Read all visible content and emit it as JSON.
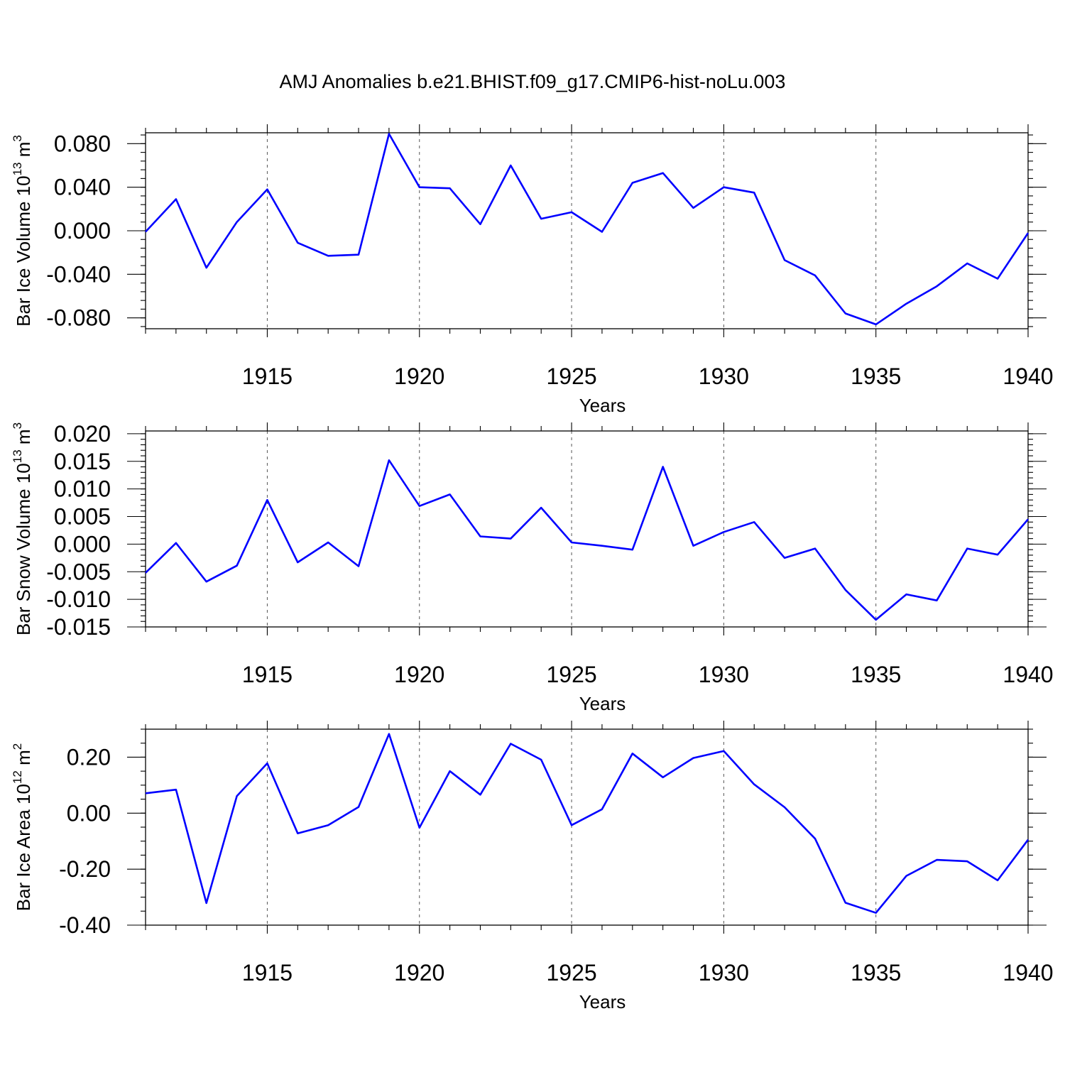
{
  "title": "AMJ Anomalies b.e21.BHIST.f09_g17.CMIP6-hist-noLu.003",
  "line_color": "#0000ff",
  "chart_data": [
    {
      "type": "line",
      "ylabel": "Bar Ice Volume 10",
      "ylabel_exp": "13",
      "ylabel_unit": " m",
      "ylabel_unit_exp": "3",
      "xlabel": "Years",
      "xlim": [
        1911,
        1940
      ],
      "ylim": [
        -0.09,
        0.09
      ],
      "x_ticks": [
        1915,
        1920,
        1925,
        1930,
        1935,
        1940
      ],
      "y_ticks": [
        -0.08,
        -0.04,
        0.0,
        0.04,
        0.08
      ],
      "y_tick_labels": [
        "-0.080",
        "-0.040",
        "0.000",
        "0.040",
        "0.080"
      ],
      "y_minor_step": 0.008,
      "grid": "x-dashed",
      "x": [
        1911,
        1912,
        1913,
        1914,
        1915,
        1916,
        1917,
        1918,
        1919,
        1920,
        1921,
        1922,
        1923,
        1924,
        1925,
        1926,
        1927,
        1928,
        1929,
        1930,
        1931,
        1932,
        1933,
        1934,
        1935,
        1936,
        1937,
        1938,
        1939,
        1940
      ],
      "series": [
        {
          "values": [
            -0.001,
            0.029,
            -0.034,
            0.008,
            0.038,
            -0.011,
            -0.023,
            -0.022,
            0.089,
            0.04,
            0.039,
            0.006,
            0.06,
            0.011,
            0.017,
            -0.001,
            0.044,
            0.053,
            0.021,
            0.04,
            0.035,
            -0.027,
            -0.041,
            -0.076,
            -0.086,
            -0.067,
            -0.051,
            -0.03,
            -0.044,
            -0.002
          ]
        }
      ]
    },
    {
      "type": "line",
      "ylabel": "Bar Snow Volume 10",
      "ylabel_exp": "13",
      "ylabel_unit": " m",
      "ylabel_unit_exp": "3",
      "xlabel": "Years",
      "xlim": [
        1911,
        1940
      ],
      "ylim": [
        -0.015,
        0.0205
      ],
      "x_ticks": [
        1915,
        1920,
        1925,
        1930,
        1935,
        1940
      ],
      "y_ticks": [
        -0.015,
        -0.01,
        -0.005,
        0.0,
        0.005,
        0.01,
        0.015,
        0.02
      ],
      "y_tick_labels": [
        "-0.015",
        "-0.010",
        "-0.005",
        "0.000",
        "0.005",
        "0.010",
        "0.015",
        "0.020"
      ],
      "y_minor_step": 0.001,
      "grid": "x-dashed",
      "x": [
        1911,
        1912,
        1913,
        1914,
        1915,
        1916,
        1917,
        1918,
        1919,
        1920,
        1921,
        1922,
        1923,
        1924,
        1925,
        1926,
        1927,
        1928,
        1929,
        1930,
        1931,
        1932,
        1933,
        1934,
        1935,
        1936,
        1937,
        1938,
        1939,
        1940
      ],
      "series": [
        {
          "values": [
            -0.0052,
            0.0002,
            -0.0068,
            -0.0039,
            0.008,
            -0.0033,
            0.0003,
            -0.004,
            0.0152,
            0.0069,
            0.009,
            0.0014,
            0.001,
            0.0066,
            0.0003,
            -0.0003,
            -0.001,
            0.014,
            -0.0003,
            0.0022,
            0.004,
            -0.0025,
            -0.0008,
            -0.0083,
            -0.0137,
            -0.0091,
            -0.0102,
            -0.0008,
            -0.0019,
            0.0045
          ]
        }
      ]
    },
    {
      "type": "line",
      "ylabel": "Bar Ice Area 10",
      "ylabel_exp": "12",
      "ylabel_unit": " m",
      "ylabel_unit_exp": "2",
      "xlabel": "Years",
      "xlim": [
        1911,
        1940
      ],
      "ylim": [
        -0.4,
        0.3
      ],
      "x_ticks": [
        1915,
        1920,
        1925,
        1930,
        1935,
        1940
      ],
      "y_ticks": [
        -0.4,
        -0.2,
        0.0,
        0.2
      ],
      "y_tick_labels": [
        "-0.40",
        "-0.20",
        "0.00",
        "0.20"
      ],
      "y_minor_step": 0.05,
      "grid": "x-dashed",
      "x": [
        1911,
        1912,
        1913,
        1914,
        1915,
        1916,
        1917,
        1918,
        1919,
        1920,
        1921,
        1922,
        1923,
        1924,
        1925,
        1926,
        1927,
        1928,
        1929,
        1930,
        1931,
        1932,
        1933,
        1934,
        1935,
        1936,
        1937,
        1938,
        1939,
        1940
      ],
      "series": [
        {
          "values": [
            0.071,
            0.084,
            -0.321,
            0.061,
            0.178,
            -0.072,
            -0.043,
            0.022,
            0.283,
            -0.052,
            0.15,
            0.066,
            0.248,
            0.191,
            -0.043,
            0.014,
            0.213,
            0.128,
            0.197,
            0.222,
            0.103,
            0.021,
            -0.091,
            -0.32,
            -0.356,
            -0.224,
            -0.167,
            -0.172,
            -0.24,
            -0.095
          ]
        }
      ]
    }
  ]
}
